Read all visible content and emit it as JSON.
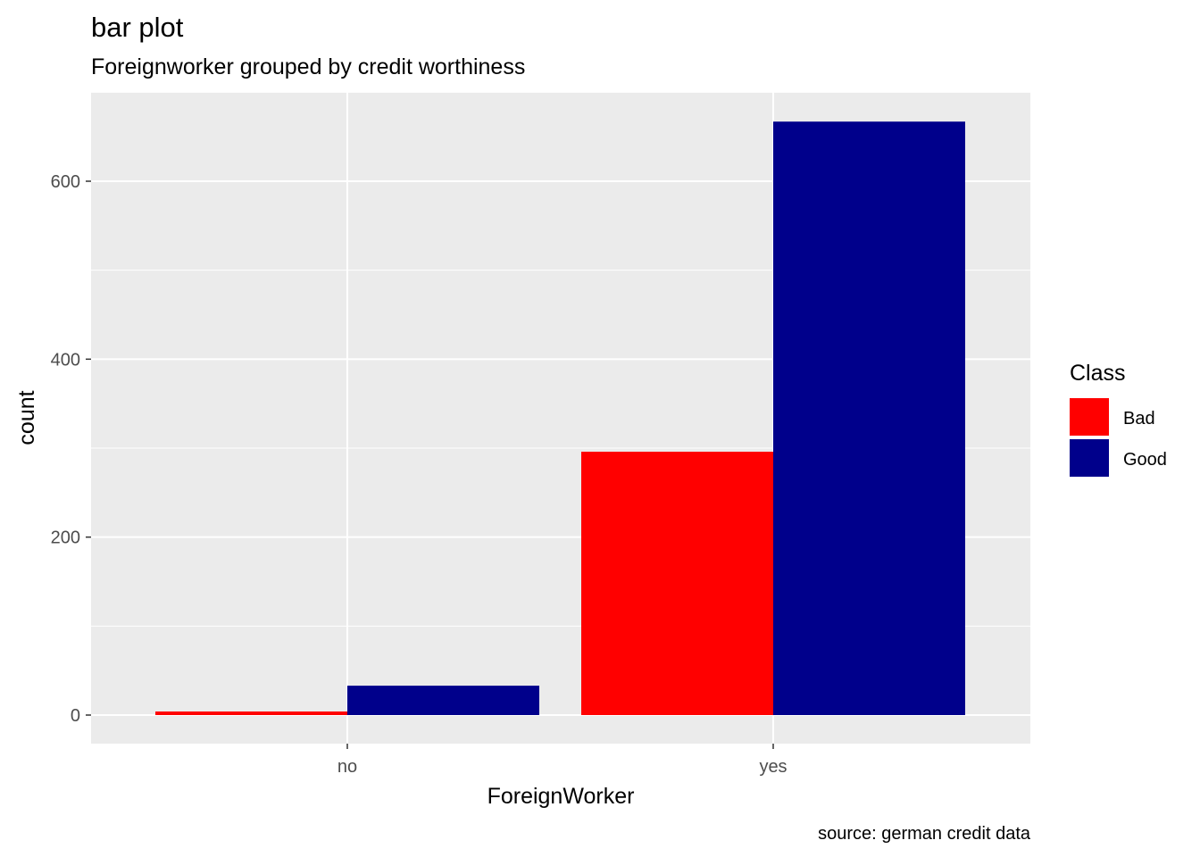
{
  "chart_data": {
    "type": "bar",
    "title": "bar plot",
    "subtitle": "Foreignworker grouped by credit worthiness",
    "caption": "source: german credit data",
    "xlabel": "ForeignWorker",
    "ylabel": "count",
    "categories": [
      "no",
      "yes"
    ],
    "series": [
      {
        "name": "Bad",
        "values": [
          4,
          296
        ]
      },
      {
        "name": "Good",
        "values": [
          33,
          667
        ]
      }
    ],
    "ylim": [
      0,
      700
    ],
    "yticks": [
      0,
      200,
      400,
      600
    ],
    "grid": true,
    "legend": {
      "title": "Class",
      "position": "right"
    },
    "colors": {
      "Bad": "#FF0000",
      "Good": "#00008B",
      "panel": "#EBEBEB",
      "grid": "#FFFFFF"
    }
  }
}
